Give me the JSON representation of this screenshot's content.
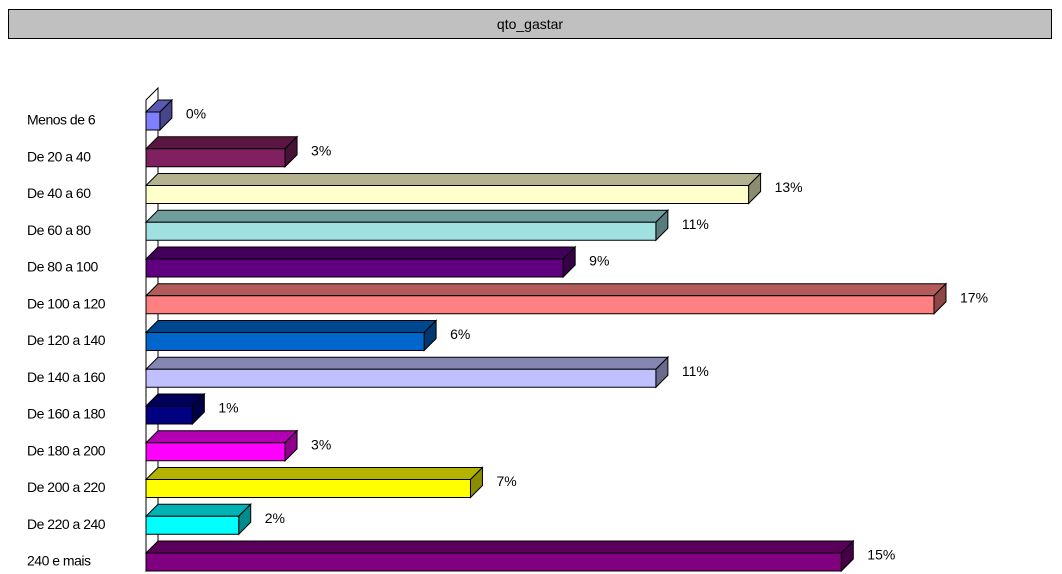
{
  "chart_data": {
    "type": "bar",
    "orientation": "horizontal",
    "style": "3d",
    "title": "qto_gastar",
    "categories": [
      "Menos de 6",
      "De 20 a 40",
      "De 40 a 60",
      "De 60 a 80",
      "De 80 a 100",
      "De 100 a 120",
      "De 120 a 140",
      "De 140 a 160",
      "De 160 a 180",
      "De 180 a 200",
      "De 200 a 220",
      "De 220 a 240",
      "240 e mais"
    ],
    "values": [
      0.3,
      3,
      13,
      11,
      9,
      17,
      6,
      11,
      1,
      3,
      7,
      2,
      15
    ],
    "value_labels": [
      "0%",
      "3%",
      "13%",
      "11%",
      "9%",
      "17%",
      "6%",
      "11%",
      "1%",
      "3%",
      "7%",
      "2%",
      "15%"
    ],
    "colors": [
      "#8080ff",
      "#802060",
      "#ffffcc",
      "#a0e0e0",
      "#600080",
      "#ff8080",
      "#0066cc",
      "#c0c0ff",
      "#000080",
      "#ff00ff",
      "#ffff00",
      "#00ffff",
      "#800080"
    ],
    "xlim": [
      0,
      17
    ],
    "grid": false,
    "legend": "none"
  }
}
